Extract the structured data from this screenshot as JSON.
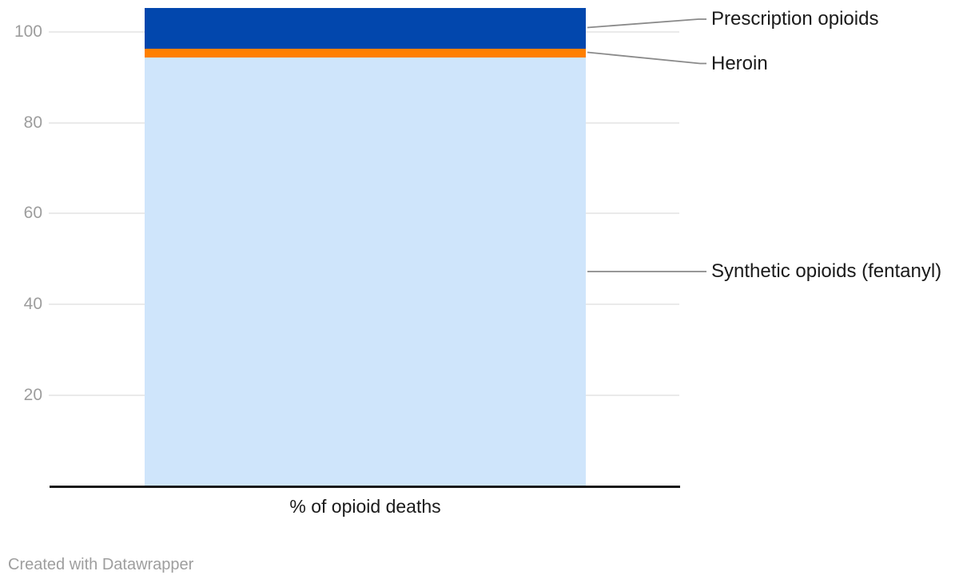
{
  "chart_data": {
    "type": "bar",
    "variant": "stacked-column",
    "title": "",
    "xlabel": "% of opioid deaths",
    "categories": [
      "% of opioid deaths"
    ],
    "series": [
      {
        "name": "Synthetic opioids (fentanyl)",
        "value": 94.4,
        "color": "#cfe5fb"
      },
      {
        "name": "Heroin",
        "value": 1.9,
        "color": "#ff8000"
      },
      {
        "name": "Prescription opioids",
        "value": 9.0,
        "color": "#0247ad"
      }
    ],
    "stack_total": 105.3,
    "y_axis": {
      "ticks": [
        20,
        40,
        60,
        80,
        100
      ],
      "range": [
        0,
        105.5
      ],
      "gridlines": true
    },
    "legend_position": "right-callout-labels"
  },
  "footer": {
    "credit": "Created with Datawrapper"
  },
  "colors": {
    "axis": "#1a1a1a",
    "gridline": "#eaeaea",
    "tick_text": "#9d9d9d",
    "label_text": "#1a1a1a",
    "callout_line": "#8a8a8a",
    "credit_text": "#9e9e9e"
  }
}
